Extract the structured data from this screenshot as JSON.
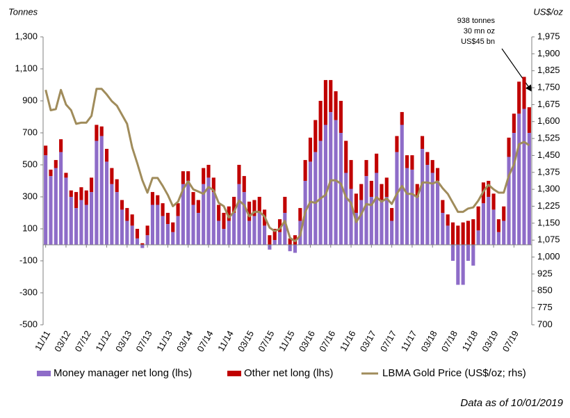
{
  "chart_data": {
    "type": "bar",
    "stacked": true,
    "y_title": "Tonnes",
    "y2_title": "US$/oz",
    "annotation": [
      "938 tonnes",
      "30 mn oz",
      "US$45 bn"
    ],
    "footnote": "Data as of 10/01/2019",
    "categories": [
      "11/11",
      null,
      null,
      null,
      "03/12",
      null,
      null,
      null,
      "07/12",
      null,
      null,
      null,
      "11/12",
      null,
      null,
      null,
      "03/13",
      null,
      null,
      null,
      "07/13",
      null,
      null,
      null,
      "11/13",
      null,
      null,
      null,
      "03/14",
      null,
      null,
      null,
      "07/14",
      null,
      null,
      null,
      "11/14",
      null,
      null,
      null,
      "03/15",
      null,
      null,
      null,
      "07/15",
      null,
      null,
      null,
      "11/15",
      null,
      null,
      null,
      "03/16",
      null,
      null,
      null,
      "07/16",
      null,
      null,
      null,
      "11/16",
      null,
      null,
      null,
      "03/17",
      null,
      null,
      null,
      "07/17",
      null,
      null,
      null,
      "11/17",
      null,
      null,
      null,
      "03/18",
      null,
      null,
      null,
      "07/18",
      null,
      null,
      null,
      "11/18",
      null,
      null,
      null,
      "03/19",
      null,
      null,
      null,
      "07/19",
      null,
      null,
      null
    ],
    "series": [
      {
        "name": "Money manager net long (lhs)",
        "color": "#8e6cc8",
        "values": [
          560,
          430,
          480,
          580,
          420,
          300,
          230,
          280,
          250,
          330,
          650,
          680,
          520,
          380,
          330,
          220,
          150,
          120,
          40,
          -20,
          60,
          250,
          250,
          180,
          130,
          80,
          180,
          380,
          400,
          250,
          200,
          380,
          420,
          330,
          150,
          100,
          150,
          200,
          380,
          330,
          150,
          180,
          200,
          120,
          -30,
          30,
          80,
          200,
          -40,
          -50,
          150,
          400,
          520,
          580,
          650,
          750,
          830,
          780,
          700,
          450,
          350,
          200,
          280,
          430,
          300,
          450,
          280,
          300,
          150,
          580,
          750,
          480,
          470,
          300,
          600,
          500,
          450,
          400,
          200,
          120,
          -100,
          -250,
          -250,
          -100,
          -130,
          90,
          260,
          300,
          220,
          80,
          150,
          550,
          700,
          820,
          850,
          700
        ]
      },
      {
        "name": "Other net long (lhs)",
        "color": "#c00000",
        "values": [
          60,
          40,
          50,
          80,
          30,
          40,
          100,
          80,
          90,
          90,
          100,
          60,
          80,
          100,
          80,
          60,
          80,
          70,
          60,
          10,
          60,
          80,
          60,
          80,
          70,
          60,
          80,
          80,
          60,
          80,
          80,
          100,
          80,
          90,
          100,
          100,
          90,
          100,
          120,
          100,
          120,
          100,
          100,
          100,
          60,
          70,
          80,
          100,
          40,
          60,
          80,
          130,
          150,
          200,
          250,
          280,
          200,
          180,
          200,
          200,
          180,
          120,
          100,
          100,
          100,
          120,
          100,
          120,
          80,
          100,
          80,
          80,
          90,
          80,
          80,
          80,
          80,
          80,
          80,
          70,
          140,
          120,
          140,
          150,
          160,
          150,
          130,
          100,
          100,
          80,
          90,
          120,
          120,
          200,
          200,
          160
        ]
      },
      {
        "name": "LBMA Gold Price (US$/oz; rhs)",
        "color": "#a08c5b",
        "type": "line",
        "axis": "y2",
        "values": [
          1740,
          1650,
          1655,
          1740,
          1675,
          1650,
          1590,
          1595,
          1595,
          1625,
          1745,
          1745,
          1720,
          1690,
          1670,
          1630,
          1590,
          1485,
          1415,
          1340,
          1285,
          1350,
          1350,
          1315,
          1275,
          1225,
          1245,
          1300,
          1335,
          1300,
          1290,
          1280,
          1310,
          1295,
          1240,
          1225,
          1175,
          1200,
          1250,
          1230,
          1180,
          1200,
          1200,
          1180,
          1130,
          1115,
          1125,
          1160,
          1085,
          1070,
          1095,
          1200,
          1245,
          1240,
          1260,
          1275,
          1340,
          1340,
          1325,
          1265,
          1240,
          1155,
          1190,
          1235,
          1230,
          1265,
          1245,
          1260,
          1235,
          1280,
          1315,
          1280,
          1280,
          1265,
          1330,
          1330,
          1325,
          1335,
          1305,
          1280,
          1240,
          1200,
          1200,
          1215,
          1220,
          1250,
          1290,
          1320,
          1300,
          1285,
          1285,
          1360,
          1410,
          1500,
          1510,
          1495
        ]
      }
    ],
    "ylim": [
      -500,
      1300
    ],
    "yticks": [
      -500,
      -300,
      -100,
      100,
      300,
      500,
      700,
      900,
      {
        "value": 1100,
        "label": "1,100"
      },
      {
        "value": 1300,
        "label": "1,300"
      }
    ],
    "y2lim": [
      700,
      1975
    ],
    "y2ticks": [
      700,
      775,
      850,
      925,
      {
        "value": 1000,
        "label": "1,000"
      },
      {
        "value": 1075,
        "label": "1,075"
      },
      {
        "value": 1150,
        "label": "1,150"
      },
      {
        "value": 1225,
        "label": "1,225"
      },
      {
        "value": 1300,
        "label": "1,300"
      },
      {
        "value": 1375,
        "label": "1,375"
      },
      {
        "value": 1450,
        "label": "1,450"
      },
      {
        "value": 1525,
        "label": "1,525"
      },
      {
        "value": 1600,
        "label": "1,600"
      },
      {
        "value": 1675,
        "label": "1,675"
      },
      {
        "value": 1750,
        "label": "1,750"
      },
      {
        "value": 1825,
        "label": "1,825"
      },
      {
        "value": 1900,
        "label": "1,900"
      },
      {
        "value": 1975,
        "label": "1,975"
      }
    ]
  }
}
